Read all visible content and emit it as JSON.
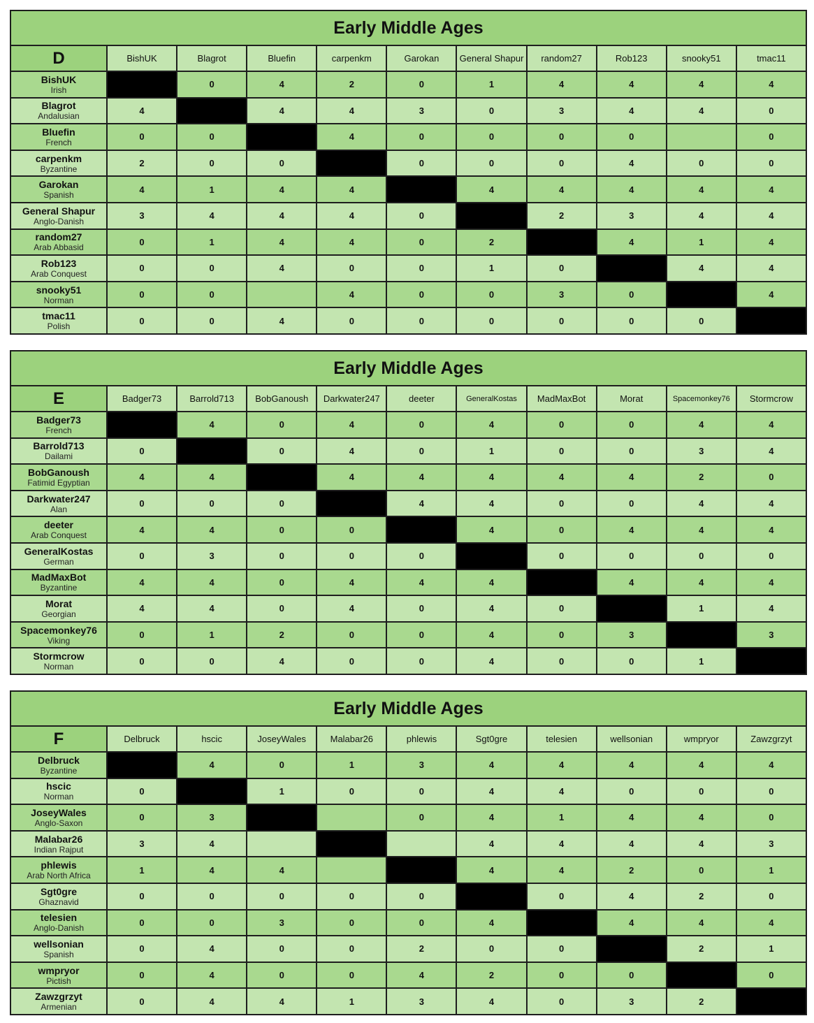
{
  "tables": [
    {
      "title": "Early Middle Ages",
      "group": "D",
      "columns": [
        "BishUK",
        "Blagrot",
        "Bluefin",
        "carpenkm",
        "Garokan",
        "General Shapur",
        "random27",
        "Rob123",
        "snooky51",
        "tmac11"
      ],
      "rows": [
        {
          "name": "BishUK",
          "civ": "Irish",
          "values": [
            null,
            "0",
            "4",
            "2",
            "0",
            "1",
            "4",
            "4",
            "4",
            "4"
          ]
        },
        {
          "name": "Blagrot",
          "civ": "Andalusian",
          "values": [
            "4",
            null,
            "4",
            "4",
            "3",
            "0",
            "3",
            "4",
            "4",
            "0"
          ]
        },
        {
          "name": "Bluefin",
          "civ": "French",
          "values": [
            "0",
            "0",
            null,
            "4",
            "0",
            "0",
            "0",
            "0",
            "",
            "0"
          ]
        },
        {
          "name": "carpenkm",
          "civ": "Byzantine",
          "values": [
            "2",
            "0",
            "0",
            null,
            "0",
            "0",
            "0",
            "4",
            "0",
            "0"
          ]
        },
        {
          "name": "Garokan",
          "civ": "Spanish",
          "values": [
            "4",
            "1",
            "4",
            "4",
            null,
            "4",
            "4",
            "4",
            "4",
            "4"
          ]
        },
        {
          "name": "General Shapur",
          "civ": "Anglo-Danish",
          "values": [
            "3",
            "4",
            "4",
            "4",
            "0",
            null,
            "2",
            "3",
            "4",
            "4"
          ]
        },
        {
          "name": "random27",
          "civ": "Arab Abbasid",
          "values": [
            "0",
            "1",
            "4",
            "4",
            "0",
            "2",
            null,
            "4",
            "1",
            "4"
          ]
        },
        {
          "name": "Rob123",
          "civ": "Arab Conquest",
          "values": [
            "0",
            "0",
            "4",
            "0",
            "0",
            "1",
            "0",
            null,
            "4",
            "4"
          ]
        },
        {
          "name": "snooky51",
          "civ": "Norman",
          "values": [
            "0",
            "0",
            "",
            "4",
            "0",
            "0",
            "3",
            "0",
            null,
            "4"
          ]
        },
        {
          "name": "tmac11",
          "civ": "Polish",
          "values": [
            "0",
            "0",
            "4",
            "0",
            "0",
            "0",
            "0",
            "0",
            "0",
            null
          ]
        }
      ]
    },
    {
      "title": "Early Middle Ages",
      "group": "E",
      "columns": [
        "Badger73",
        "Barrold713",
        "BobGanoush",
        "Darkwater247",
        "deeter",
        "GeneralKostas",
        "MadMaxBot",
        "Morat",
        "Spacemonkey76",
        "Stormcrow"
      ],
      "rows": [
        {
          "name": "Badger73",
          "civ": "French",
          "values": [
            null,
            "4",
            "0",
            "4",
            "0",
            "4",
            "0",
            "0",
            "4",
            "4"
          ]
        },
        {
          "name": "Barrold713",
          "civ": "Dailami",
          "values": [
            "0",
            null,
            "0",
            "4",
            "0",
            "1",
            "0",
            "0",
            "3",
            "4"
          ]
        },
        {
          "name": "BobGanoush",
          "civ": "Fatimid Egyptian",
          "values": [
            "4",
            "4",
            null,
            "4",
            "4",
            "4",
            "4",
            "4",
            "2",
            "0"
          ]
        },
        {
          "name": "Darkwater247",
          "civ": "Alan",
          "values": [
            "0",
            "0",
            "0",
            null,
            "4",
            "4",
            "0",
            "0",
            "4",
            "4"
          ]
        },
        {
          "name": "deeter",
          "civ": "Arab Conquest",
          "values": [
            "4",
            "4",
            "0",
            "0",
            null,
            "4",
            "0",
            "4",
            "4",
            "4"
          ]
        },
        {
          "name": "GeneralKostas",
          "civ": "German",
          "values": [
            "0",
            "3",
            "0",
            "0",
            "0",
            null,
            "0",
            "0",
            "0",
            "0"
          ]
        },
        {
          "name": "MadMaxBot",
          "civ": "Byzantine",
          "values": [
            "4",
            "4",
            "0",
            "4",
            "4",
            "4",
            null,
            "4",
            "4",
            "4"
          ]
        },
        {
          "name": "Morat",
          "civ": "Georgian",
          "values": [
            "4",
            "4",
            "0",
            "4",
            "0",
            "4",
            "0",
            null,
            "1",
            "4"
          ]
        },
        {
          "name": "Spacemonkey76",
          "civ": "Viking",
          "values": [
            "0",
            "1",
            "2",
            "0",
            "0",
            "4",
            "0",
            "3",
            null,
            "3"
          ]
        },
        {
          "name": "Stormcrow",
          "civ": "Norman",
          "values": [
            "0",
            "0",
            "4",
            "0",
            "0",
            "4",
            "0",
            "0",
            "1",
            null
          ]
        }
      ]
    },
    {
      "title": "Early Middle Ages",
      "group": "F",
      "columns": [
        "Delbruck",
        "hscic",
        "JoseyWales",
        "Malabar26",
        "phlewis",
        "Sgt0gre",
        "telesien",
        "wellsonian",
        "wmpryor",
        "Zawzgrzyt"
      ],
      "rows": [
        {
          "name": "Delbruck",
          "civ": "Byzantine",
          "values": [
            null,
            "4",
            "0",
            "1",
            "3",
            "4",
            "4",
            "4",
            "4",
            "4"
          ]
        },
        {
          "name": "hscic",
          "civ": "Norman",
          "values": [
            "0",
            null,
            "1",
            "0",
            "0",
            "4",
            "4",
            "0",
            "0",
            "0"
          ]
        },
        {
          "name": "JoseyWales",
          "civ": "Anglo-Saxon",
          "values": [
            "0",
            "3",
            null,
            "",
            "0",
            "4",
            "1",
            "4",
            "4",
            "0"
          ]
        },
        {
          "name": "Malabar26",
          "civ": "Indian Rajput",
          "values": [
            "3",
            "4",
            "",
            null,
            "",
            "4",
            "4",
            "4",
            "4",
            "3"
          ]
        },
        {
          "name": "phlewis",
          "civ": "Arab North Africa",
          "values": [
            "1",
            "4",
            "4",
            "",
            null,
            "4",
            "4",
            "2",
            "0",
            "1"
          ]
        },
        {
          "name": "Sgt0gre",
          "civ": "Ghaznavid",
          "values": [
            "0",
            "0",
            "0",
            "0",
            "0",
            null,
            "0",
            "4",
            "2",
            "0"
          ]
        },
        {
          "name": "telesien",
          "civ": "Anglo-Danish",
          "values": [
            "0",
            "0",
            "3",
            "0",
            "0",
            "4",
            null,
            "4",
            "4",
            "4"
          ]
        },
        {
          "name": "wellsonian",
          "civ": "Spanish",
          "values": [
            "0",
            "4",
            "0",
            "0",
            "2",
            "0",
            "0",
            null,
            "2",
            "1"
          ]
        },
        {
          "name": "wmpryor",
          "civ": "Pictish",
          "values": [
            "0",
            "4",
            "0",
            "0",
            "4",
            "2",
            "0",
            "0",
            null,
            "0"
          ]
        },
        {
          "name": "Zawzgrzyt",
          "civ": "Armenian",
          "values": [
            "0",
            "4",
            "4",
            "1",
            "3",
            "4",
            "0",
            "3",
            "2",
            null
          ]
        }
      ]
    }
  ],
  "colors": {
    "title_bg": "#9cd27d",
    "row_dark": "#a9d98f",
    "row_light": "#c3e5b0",
    "diagonal": "#000000"
  }
}
